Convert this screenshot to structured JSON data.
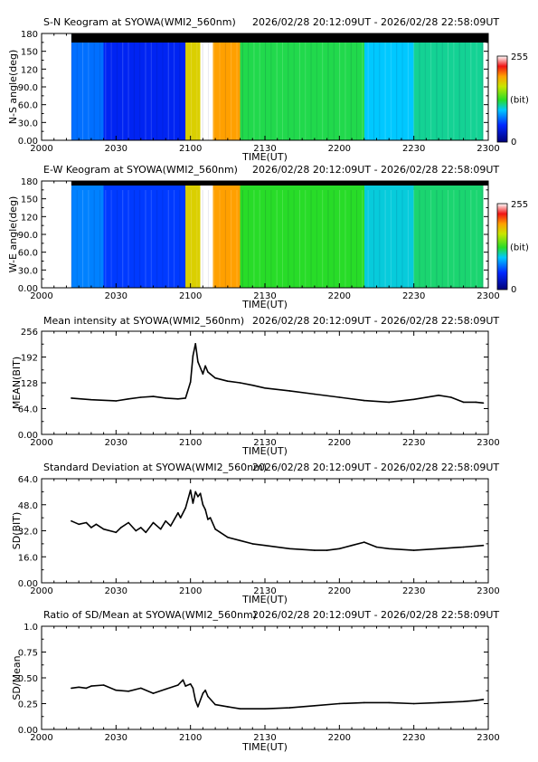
{
  "figure": {
    "time_range": "2026/02/28 20:12:09UT - 2026/02/28 22:58:09UT",
    "colorbar": {
      "max_label": "255",
      "min_label": "0",
      "unit_label": "(bit)"
    }
  },
  "chart_data": [
    {
      "type": "heatmap",
      "title": "S-N Keogram at SYOWA(WMI2_560nm)",
      "ylabel": "N-S angle(deg)",
      "xlabel": "TIME(UT)",
      "xticks": [
        "2000",
        "2030",
        "2100",
        "2130",
        "2200",
        "2230",
        "2300"
      ],
      "yticks": [
        "0.00",
        "30.0",
        "60.0",
        "90.0",
        "120",
        "150",
        "180"
      ],
      "ylim": [
        0,
        180
      ],
      "xlim_minutes_after_2000": [
        0,
        180
      ],
      "data_start_minutes_after_2000": 12,
      "data_end_minutes_after_2000": 178,
      "color_scale": {
        "min": 0,
        "max": 255,
        "unit": "bit"
      },
      "segments": [
        {
          "from": 12,
          "to": 25,
          "level": 70
        },
        {
          "from": 25,
          "to": 58,
          "level": 45
        },
        {
          "from": 58,
          "to": 64,
          "level": 175
        },
        {
          "from": 64,
          "to": 69,
          "level": 255
        },
        {
          "from": 69,
          "to": 80,
          "level": 195
        },
        {
          "from": 80,
          "to": 130,
          "level": 120
        },
        {
          "from": 130,
          "to": 150,
          "level": 95
        },
        {
          "from": 150,
          "to": 178,
          "level": 110
        }
      ]
    },
    {
      "type": "heatmap",
      "title": "E-W Keogram at SYOWA(WMI2_560nm)",
      "ylabel": "W-E angle(deg)",
      "xlabel": "TIME(UT)",
      "xticks": [
        "2000",
        "2030",
        "2100",
        "2130",
        "2200",
        "2230",
        "2300"
      ],
      "yticks": [
        "0.00",
        "30.0",
        "60.0",
        "90.0",
        "120",
        "150",
        "180"
      ],
      "ylim": [
        0,
        180
      ],
      "xlim_minutes_after_2000": [
        0,
        180
      ],
      "data_start_minutes_after_2000": 12,
      "data_end_minutes_after_2000": 178,
      "color_scale": {
        "min": 0,
        "max": 255,
        "unit": "bit"
      },
      "segments": [
        {
          "from": 12,
          "to": 25,
          "level": 75
        },
        {
          "from": 25,
          "to": 58,
          "level": 55
        },
        {
          "from": 58,
          "to": 64,
          "level": 175
        },
        {
          "from": 64,
          "to": 69,
          "level": 255
        },
        {
          "from": 69,
          "to": 80,
          "level": 195
        },
        {
          "from": 80,
          "to": 130,
          "level": 125
        },
        {
          "from": 130,
          "to": 150,
          "level": 100
        },
        {
          "from": 150,
          "to": 178,
          "level": 115
        }
      ]
    },
    {
      "type": "line",
      "title": "Mean intensity at SYOWA(WMI2_560nm)",
      "ylabel": "MEAN(BIT)",
      "xlabel": "TIME(UT)",
      "xticks": [
        "2000",
        "2030",
        "2100",
        "2130",
        "2200",
        "2230",
        "2300"
      ],
      "yticks": [
        "0.00",
        "64.0",
        "128",
        "192",
        "256"
      ],
      "ylim": [
        0,
        256
      ],
      "xlim_minutes_after_2000": [
        0,
        180
      ],
      "series": [
        {
          "x": [
            12,
            20,
            30,
            35,
            40,
            45,
            50,
            55,
            58,
            60,
            61,
            62,
            63,
            65,
            66,
            67,
            68,
            70,
            75,
            80,
            85,
            90,
            100,
            110,
            120,
            130,
            140,
            150,
            160,
            165,
            170,
            175,
            178
          ],
          "y": [
            90,
            86,
            83,
            88,
            92,
            94,
            90,
            88,
            90,
            130,
            195,
            225,
            180,
            150,
            170,
            155,
            150,
            140,
            132,
            128,
            122,
            115,
            108,
            100,
            92,
            84,
            80,
            87,
            97,
            92,
            80,
            80,
            78
          ]
        }
      ]
    },
    {
      "type": "line",
      "title": "Standard Deviation at SYOWA(WMI2_560nm)",
      "ylabel": "SD(BIT)",
      "xlabel": "TIME(UT)",
      "xticks": [
        "2000",
        "2030",
        "2100",
        "2130",
        "2200",
        "2230",
        "2300"
      ],
      "yticks": [
        "0.00",
        "16.0",
        "32.0",
        "48.0",
        "64.0"
      ],
      "ylim": [
        0,
        64
      ],
      "xlim_minutes_after_2000": [
        0,
        180
      ],
      "series": [
        {
          "x": [
            12,
            15,
            18,
            20,
            22,
            25,
            30,
            32,
            35,
            38,
            40,
            42,
            45,
            48,
            50,
            52,
            55,
            56,
            58,
            60,
            61,
            62,
            63,
            64,
            65,
            66,
            67,
            68,
            70,
            72,
            75,
            80,
            85,
            90,
            100,
            110,
            115,
            120,
            125,
            130,
            135,
            140,
            150,
            160,
            170,
            178
          ],
          "y": [
            38,
            36,
            37,
            34,
            36,
            33,
            31,
            34,
            37,
            32,
            34,
            31,
            37,
            33,
            38,
            35,
            43,
            40,
            46,
            57,
            49,
            56,
            53,
            55,
            48,
            45,
            39,
            40,
            33,
            31,
            28,
            26,
            24,
            23,
            21,
            20,
            20,
            21,
            23,
            25,
            22,
            21,
            20,
            21,
            22,
            23
          ]
        }
      ]
    },
    {
      "type": "line",
      "title": "Ratio of SD/Mean at SYOWA(WMI2_560nm)",
      "ylabel": "SD/Mean",
      "xlabel": "TIME(UT)",
      "xticks": [
        "2000",
        "2030",
        "2100",
        "2130",
        "2200",
        "2230",
        "2300"
      ],
      "yticks": [
        "0.00",
        "0.25",
        "0.50",
        "0.75",
        "1.0"
      ],
      "ylim": [
        0,
        1
      ],
      "xlim_minutes_after_2000": [
        0,
        180
      ],
      "series": [
        {
          "x": [
            12,
            15,
            18,
            20,
            25,
            30,
            35,
            40,
            45,
            50,
            55,
            57,
            58,
            60,
            61,
            62,
            63,
            65,
            66,
            67,
            70,
            75,
            80,
            90,
            100,
            110,
            120,
            130,
            140,
            150,
            160,
            170,
            175,
            178
          ],
          "y": [
            0.4,
            0.41,
            0.4,
            0.42,
            0.43,
            0.38,
            0.37,
            0.4,
            0.35,
            0.39,
            0.43,
            0.48,
            0.42,
            0.44,
            0.4,
            0.28,
            0.22,
            0.35,
            0.38,
            0.32,
            0.24,
            0.22,
            0.2,
            0.2,
            0.21,
            0.23,
            0.25,
            0.26,
            0.26,
            0.25,
            0.26,
            0.27,
            0.28,
            0.29
          ]
        }
      ]
    }
  ]
}
